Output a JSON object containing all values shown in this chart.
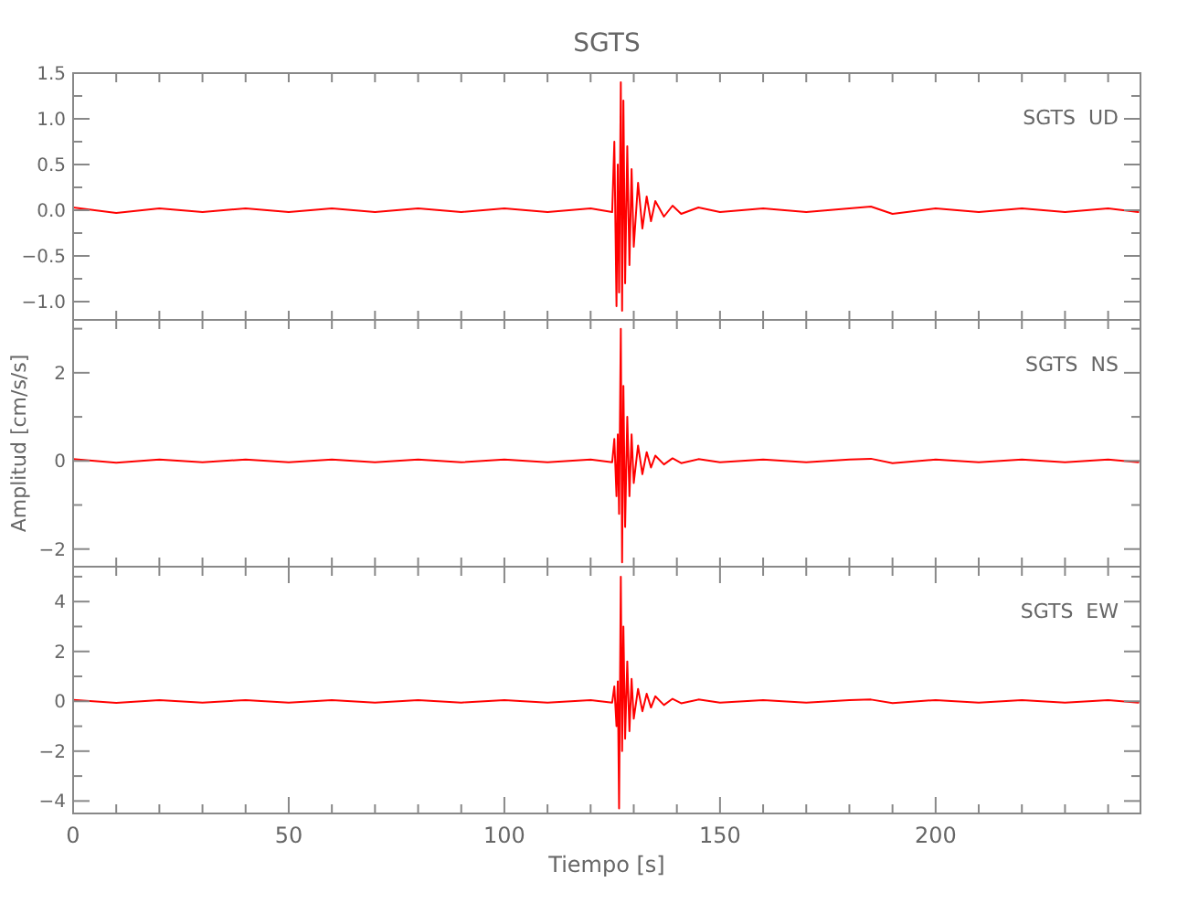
{
  "chart_data": [
    {
      "type": "line",
      "title": "SGTS",
      "annotations": [
        "SGTS  UD"
      ],
      "tick_labels": "y",
      "color": "#ff0000",
      "x": [
        0,
        10,
        20,
        30,
        40,
        50,
        60,
        70,
        80,
        90,
        100,
        110,
        120,
        125,
        125.5,
        126,
        126.3,
        126.6,
        127,
        127.3,
        127.6,
        128,
        128.5,
        129,
        129.5,
        130,
        131,
        132,
        133,
        134,
        135,
        137,
        139,
        141,
        145,
        150,
        160,
        170,
        180,
        185,
        190,
        200,
        210,
        220,
        230,
        240,
        247
      ],
      "values": [
        0.03,
        -0.03,
        0.02,
        -0.02,
        0.02,
        -0.02,
        0.02,
        -0.02,
        0.02,
        -0.02,
        0.02,
        -0.02,
        0.02,
        -0.02,
        0.75,
        -1.05,
        0.5,
        -0.9,
        1.4,
        -1.1,
        1.2,
        -0.8,
        0.7,
        -0.6,
        0.45,
        -0.4,
        0.3,
        -0.2,
        0.15,
        -0.12,
        0.1,
        -0.07,
        0.05,
        -0.04,
        0.03,
        -0.02,
        0.02,
        -0.02,
        0.02,
        0.04,
        -0.04,
        0.02,
        -0.02,
        0.02,
        -0.02,
        0.02,
        -0.02
      ],
      "xlim": [
        0,
        247.5
      ],
      "xticks": [
        {
          "value": 0,
          "label": null
        },
        {
          "value": 10,
          "label": null
        },
        {
          "value": 20,
          "label": null
        },
        {
          "value": 30,
          "label": null
        },
        {
          "value": 40,
          "label": null
        },
        {
          "value": 50,
          "label": null
        },
        {
          "value": 60,
          "label": null
        },
        {
          "value": 70,
          "label": null
        },
        {
          "value": 80,
          "label": null
        },
        {
          "value": 90,
          "label": null
        },
        {
          "value": 100,
          "label": null
        },
        {
          "value": 110,
          "label": null
        },
        {
          "value": 120,
          "label": null
        },
        {
          "value": 130,
          "label": null
        },
        {
          "value": 140,
          "label": null
        },
        {
          "value": 150,
          "label": null
        },
        {
          "value": 160,
          "label": null
        },
        {
          "value": 170,
          "label": null
        },
        {
          "value": 180,
          "label": null
        },
        {
          "value": 190,
          "label": null
        },
        {
          "value": 200,
          "label": null
        },
        {
          "value": 210,
          "label": null
        },
        {
          "value": 220,
          "label": null
        },
        {
          "value": 230,
          "label": null
        },
        {
          "value": 240,
          "label": null
        }
      ],
      "ylim": [
        -1.2,
        1.5
      ],
      "yticks": [
        {
          "value": -1,
          "label": "−1.0"
        },
        {
          "value": -0.75,
          "label": null
        },
        {
          "value": -0.5,
          "label": "−0.5"
        },
        {
          "value": -0.25,
          "label": null
        },
        {
          "value": 0,
          "label": "0.0"
        },
        {
          "value": 0.25,
          "label": null
        },
        {
          "value": 0.5,
          "label": "0.5"
        },
        {
          "value": 0.75,
          "label": null
        },
        {
          "value": 1,
          "label": "1.0"
        },
        {
          "value": 1.25,
          "label": null
        },
        {
          "value": 1.5,
          "label": "1.5"
        }
      ]
    },
    {
      "type": "line",
      "ylabel": "Amplitud [cm/s/s]",
      "annotations": [
        "SGTS  NS"
      ],
      "tick_labels": "y",
      "color": "#ff0000",
      "x": [
        0,
        10,
        20,
        30,
        40,
        50,
        60,
        70,
        80,
        90,
        100,
        110,
        120,
        125,
        125.5,
        126,
        126.3,
        126.6,
        127,
        127.3,
        127.6,
        128,
        128.5,
        129,
        129.5,
        130,
        131,
        132,
        133,
        134,
        135,
        137,
        139,
        141,
        145,
        150,
        160,
        170,
        180,
        185,
        190,
        200,
        210,
        220,
        230,
        240,
        247
      ],
      "values": [
        0.04,
        -0.04,
        0.03,
        -0.03,
        0.03,
        -0.03,
        0.03,
        -0.03,
        0.03,
        -0.03,
        0.03,
        -0.03,
        0.03,
        -0.03,
        0.5,
        -0.8,
        0.6,
        -1.2,
        3.0,
        -2.3,
        1.7,
        -1.5,
        1.0,
        -0.8,
        0.6,
        -0.5,
        0.35,
        -0.3,
        0.2,
        -0.15,
        0.12,
        -0.08,
        0.06,
        -0.05,
        0.04,
        -0.03,
        0.03,
        -0.03,
        0.03,
        0.05,
        -0.05,
        0.03,
        -0.03,
        0.03,
        -0.03,
        0.03,
        -0.03
      ],
      "xlim": [
        0,
        247.5
      ],
      "xticks": [
        {
          "value": 0,
          "label": null
        },
        {
          "value": 10,
          "label": null
        },
        {
          "value": 20,
          "label": null
        },
        {
          "value": 30,
          "label": null
        },
        {
          "value": 40,
          "label": null
        },
        {
          "value": 50,
          "label": null
        },
        {
          "value": 60,
          "label": null
        },
        {
          "value": 70,
          "label": null
        },
        {
          "value": 80,
          "label": null
        },
        {
          "value": 90,
          "label": null
        },
        {
          "value": 100,
          "label": null
        },
        {
          "value": 110,
          "label": null
        },
        {
          "value": 120,
          "label": null
        },
        {
          "value": 130,
          "label": null
        },
        {
          "value": 140,
          "label": null
        },
        {
          "value": 150,
          "label": null
        },
        {
          "value": 160,
          "label": null
        },
        {
          "value": 170,
          "label": null
        },
        {
          "value": 180,
          "label": null
        },
        {
          "value": 190,
          "label": null
        },
        {
          "value": 200,
          "label": null
        },
        {
          "value": 210,
          "label": null
        },
        {
          "value": 220,
          "label": null
        },
        {
          "value": 230,
          "label": null
        },
        {
          "value": 240,
          "label": null
        }
      ],
      "ylim": [
        -2.4,
        3.2
      ],
      "yticks": [
        {
          "value": -2,
          "label": "−2"
        },
        {
          "value": -1,
          "label": null
        },
        0,
        {
          "value": 1,
          "label": null
        },
        2,
        {
          "value": 3,
          "label": null
        }
      ]
    },
    {
      "type": "line",
      "xlabel": "Tiempo [s]",
      "annotations": [
        "SGTS  EW"
      ],
      "color": "#ff0000",
      "x": [
        0,
        10,
        20,
        30,
        40,
        50,
        60,
        70,
        80,
        90,
        100,
        110,
        120,
        125,
        125.5,
        126,
        126.3,
        126.6,
        127,
        127.3,
        127.6,
        128,
        128.5,
        129,
        129.5,
        130,
        131,
        132,
        133,
        134,
        135,
        137,
        139,
        141,
        145,
        150,
        160,
        170,
        180,
        185,
        190,
        200,
        210,
        220,
        230,
        240,
        247
      ],
      "values": [
        0.06,
        -0.06,
        0.05,
        -0.05,
        0.05,
        -0.05,
        0.05,
        -0.05,
        0.05,
        -0.05,
        0.05,
        -0.05,
        0.05,
        -0.05,
        0.6,
        -1.0,
        0.8,
        -4.3,
        5.0,
        -2.0,
        3.0,
        -1.5,
        1.6,
        -1.2,
        0.9,
        -0.7,
        0.5,
        -0.4,
        0.3,
        -0.25,
        0.2,
        -0.15,
        0.1,
        -0.08,
        0.07,
        -0.05,
        0.05,
        -0.05,
        0.05,
        0.07,
        -0.07,
        0.05,
        -0.05,
        0.05,
        -0.05,
        0.05,
        -0.05
      ],
      "xlim": [
        0,
        247.5
      ],
      "xticks": [
        0,
        {
          "value": 10,
          "label": null
        },
        {
          "value": 20,
          "label": null
        },
        {
          "value": 30,
          "label": null
        },
        {
          "value": 40,
          "label": null
        },
        50,
        {
          "value": 60,
          "label": null
        },
        {
          "value": 70,
          "label": null
        },
        {
          "value": 80,
          "label": null
        },
        {
          "value": 90,
          "label": null
        },
        100,
        {
          "value": 110,
          "label": null
        },
        {
          "value": 120,
          "label": null
        },
        {
          "value": 130,
          "label": null
        },
        {
          "value": 140,
          "label": null
        },
        150,
        {
          "value": 160,
          "label": null
        },
        {
          "value": 170,
          "label": null
        },
        {
          "value": 180,
          "label": null
        },
        {
          "value": 190,
          "label": null
        },
        200,
        {
          "value": 210,
          "label": null
        },
        {
          "value": 220,
          "label": null
        },
        {
          "value": 230,
          "label": null
        },
        {
          "value": 240,
          "label": null
        }
      ],
      "ylim": [
        -4.5,
        5.4
      ],
      "yticks": [
        {
          "value": -4,
          "label": "−4"
        },
        {
          "value": -3,
          "label": null
        },
        {
          "value": -2,
          "label": "−2"
        },
        {
          "value": -1,
          "label": null
        },
        0,
        {
          "value": 1,
          "label": null
        },
        2,
        {
          "value": 3,
          "label": null
        },
        4,
        {
          "value": 5,
          "label": null
        }
      ]
    }
  ]
}
